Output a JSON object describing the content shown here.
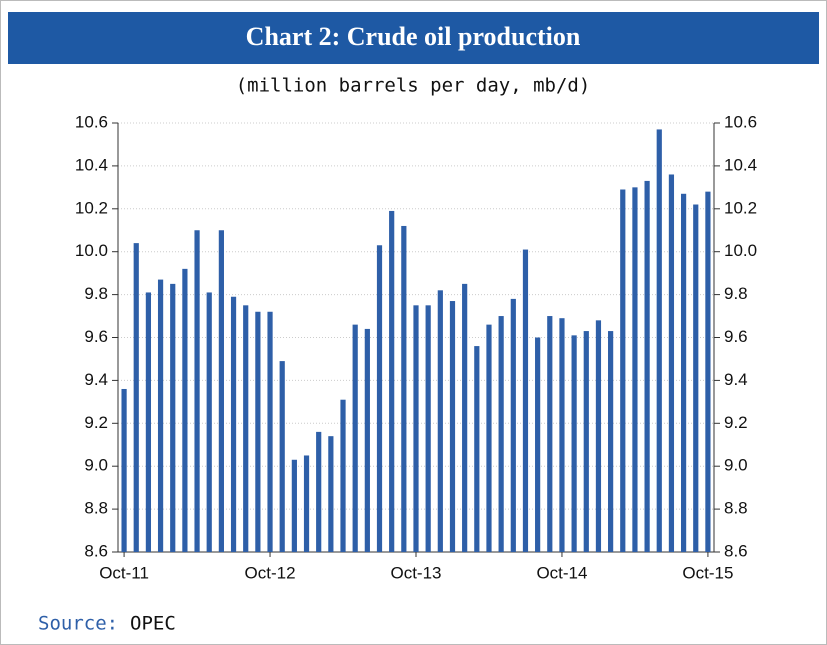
{
  "chart_data": {
    "type": "bar",
    "title": "Chart 2: Crude oil production",
    "subtitle": "(million barrels per day, mb/d)",
    "source_label": "Source:",
    "source": "OPEC",
    "categories": [
      "Oct-11",
      null,
      null,
      null,
      null,
      null,
      null,
      null,
      null,
      null,
      null,
      null,
      "Oct-12",
      null,
      null,
      null,
      null,
      null,
      null,
      null,
      null,
      null,
      null,
      null,
      "Oct-13",
      null,
      null,
      null,
      null,
      null,
      null,
      null,
      null,
      null,
      null,
      null,
      "Oct-14",
      null,
      null,
      null,
      null,
      null,
      null,
      null,
      null,
      null,
      null,
      null,
      "Oct-15"
    ],
    "values": [
      9.36,
      10.04,
      9.81,
      9.87,
      9.85,
      9.92,
      10.1,
      9.81,
      10.1,
      9.79,
      9.75,
      9.72,
      9.72,
      9.49,
      9.03,
      9.05,
      9.16,
      9.14,
      9.31,
      9.66,
      9.64,
      10.03,
      10.19,
      10.12,
      9.75,
      9.75,
      9.82,
      9.77,
      9.85,
      9.56,
      9.66,
      9.7,
      9.78,
      10.01,
      9.6,
      9.7,
      9.69,
      9.61,
      9.63,
      9.68,
      9.63,
      10.29,
      10.3,
      10.33,
      10.57,
      10.36,
      10.27,
      10.22,
      10.28
    ],
    "color": "#2e5fa8",
    "ylim": [
      8.6,
      10.6
    ],
    "yticks": [
      8.6,
      8.8,
      {
        "value": 9,
        "label": "9.0"
      },
      9.2,
      9.4,
      9.6,
      9.8,
      {
        "value": 10,
        "label": "10.0"
      },
      10.2,
      10.4,
      10.6
    ],
    "y2lim": [
      8.6,
      10.6
    ],
    "y2ticks": [
      8.6,
      8.8,
      {
        "value": 9,
        "label": "9.0"
      },
      9.2,
      9.4,
      9.6,
      9.8,
      {
        "value": 10,
        "label": "10.0"
      },
      10.2,
      10.4,
      10.6
    ],
    "grid": true
  }
}
